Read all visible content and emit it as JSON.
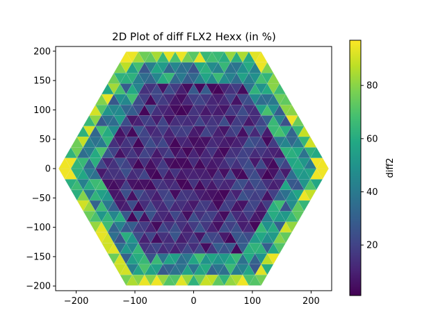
{
  "chart_data": {
    "type": "heatmap",
    "title": "2D Plot of diff FLX2 Hexx (in %)",
    "xlabel": "",
    "ylabel": "",
    "xlim": [
      -235,
      235
    ],
    "ylim": [
      -208,
      208
    ],
    "x_ticks": [
      -200,
      -100,
      0,
      100,
      200
    ],
    "y_ticks": [
      -200,
      -150,
      -100,
      -50,
      0,
      50,
      100,
      150,
      200
    ],
    "grid": false,
    "colormap": "viridis",
    "colorbar": {
      "label": "diff2",
      "min": 1,
      "max": 97,
      "ticks": [
        20,
        40,
        60,
        80
      ]
    },
    "mesh": {
      "shape": "hexagon of triangular cells",
      "hex_radius": 235,
      "triangle_side": 20.9,
      "center": [
        0,
        0
      ],
      "pattern": "low values (~1-20) in interior, high values (~60-97) on outer rim; max at far left and far right vertices"
    },
    "colors": {
      "axes_frame": "#000000",
      "cell_edge": "#d9d9d9",
      "background": "#ffffff"
    }
  }
}
